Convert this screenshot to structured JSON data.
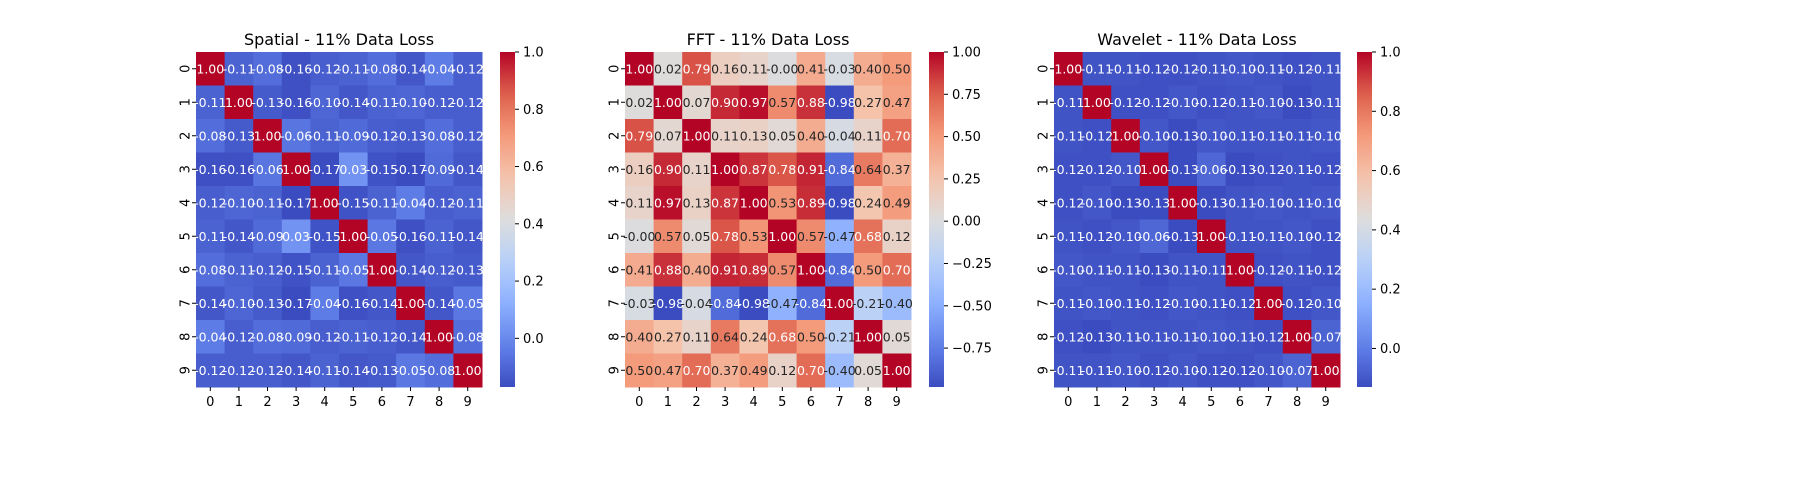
{
  "chart_data": [
    {
      "type": "heatmap",
      "title": "Spatial - 11% Data Loss",
      "x_tick_labels": [
        "0",
        "1",
        "2",
        "3",
        "4",
        "5",
        "6",
        "7",
        "8",
        "9"
      ],
      "y_tick_labels": [
        "0",
        "1",
        "2",
        "3",
        "4",
        "5",
        "6",
        "7",
        "8",
        "9"
      ],
      "colormap": "coolwarm",
      "vmin": -0.17,
      "vmax": 1.0,
      "colorbar_ticks": [
        0.0,
        0.2,
        0.4,
        0.6,
        0.8,
        1.0
      ],
      "colorbar_tick_labels": [
        "0.0",
        "0.2",
        "0.4",
        "0.6",
        "0.8",
        "1.0"
      ],
      "values": [
        [
          1.0,
          -0.11,
          -0.08,
          -0.16,
          -0.12,
          -0.11,
          -0.08,
          -0.14,
          -0.04,
          -0.12
        ],
        [
          -0.11,
          1.0,
          -0.13,
          -0.16,
          -0.1,
          -0.14,
          -0.11,
          -0.1,
          -0.12,
          -0.12
        ],
        [
          -0.08,
          -0.13,
          1.0,
          -0.06,
          -0.11,
          -0.09,
          -0.12,
          -0.13,
          -0.08,
          -0.12
        ],
        [
          -0.16,
          -0.16,
          -0.06,
          1.0,
          -0.17,
          0.03,
          -0.15,
          -0.17,
          -0.09,
          -0.14
        ],
        [
          -0.12,
          -0.1,
          -0.11,
          -0.17,
          1.0,
          -0.15,
          -0.11,
          -0.04,
          -0.12,
          -0.11
        ],
        [
          -0.11,
          -0.14,
          -0.09,
          0.03,
          -0.15,
          1.0,
          -0.05,
          -0.16,
          -0.11,
          -0.14
        ],
        [
          -0.08,
          -0.11,
          -0.12,
          -0.15,
          -0.11,
          -0.05,
          1.0,
          -0.14,
          -0.12,
          -0.13
        ],
        [
          -0.14,
          -0.1,
          -0.13,
          -0.17,
          -0.04,
          -0.16,
          -0.14,
          1.0,
          -0.14,
          -0.05
        ],
        [
          -0.04,
          -0.12,
          -0.08,
          -0.09,
          -0.12,
          -0.11,
          -0.12,
          -0.14,
          1.0,
          -0.08
        ],
        [
          -0.12,
          -0.12,
          -0.12,
          -0.14,
          -0.11,
          -0.14,
          -0.13,
          -0.05,
          -0.08,
          1.0
        ]
      ]
    },
    {
      "type": "heatmap",
      "title": "FFT - 11% Data Loss",
      "x_tick_labels": [
        "0",
        "1",
        "2",
        "3",
        "4",
        "5",
        "6",
        "7",
        "8",
        "9"
      ],
      "y_tick_labels": [
        "0",
        "1",
        "2",
        "3",
        "4",
        "5",
        "6",
        "7",
        "8",
        "9"
      ],
      "colormap": "coolwarm",
      "vmin": -0.98,
      "vmax": 1.0,
      "colorbar_ticks": [
        -0.75,
        -0.5,
        -0.25,
        0.0,
        0.25,
        0.5,
        0.75,
        1.0
      ],
      "colorbar_tick_labels": [
        "−0.75",
        "−0.50",
        "−0.25",
        "0.00",
        "0.25",
        "0.50",
        "0.75",
        "1.00"
      ],
      "values": [
        [
          1.0,
          0.02,
          0.79,
          0.16,
          0.11,
          -0.0,
          0.41,
          -0.03,
          0.4,
          0.5
        ],
        [
          0.02,
          1.0,
          0.07,
          0.9,
          0.97,
          0.57,
          0.88,
          -0.98,
          0.27,
          0.47
        ],
        [
          0.79,
          0.07,
          1.0,
          0.11,
          0.13,
          0.05,
          0.4,
          -0.04,
          0.11,
          0.7
        ],
        [
          0.16,
          0.9,
          0.11,
          1.0,
          0.87,
          0.78,
          0.91,
          -0.84,
          0.64,
          0.37
        ],
        [
          0.11,
          0.97,
          0.13,
          0.87,
          1.0,
          0.53,
          0.89,
          -0.98,
          0.24,
          0.49
        ],
        [
          -0.0,
          0.57,
          0.05,
          0.78,
          0.53,
          1.0,
          0.57,
          -0.47,
          0.68,
          0.12
        ],
        [
          0.41,
          0.88,
          0.4,
          0.91,
          0.89,
          0.57,
          1.0,
          -0.84,
          0.5,
          0.7
        ],
        [
          -0.03,
          -0.98,
          -0.04,
          -0.84,
          -0.98,
          -0.47,
          -0.84,
          1.0,
          -0.21,
          -0.4
        ],
        [
          0.4,
          0.27,
          0.11,
          0.64,
          0.24,
          0.68,
          0.5,
          -0.21,
          1.0,
          0.05
        ],
        [
          0.5,
          0.47,
          0.7,
          0.37,
          0.49,
          0.12,
          0.7,
          -0.4,
          0.05,
          1.0
        ]
      ]
    },
    {
      "type": "heatmap",
      "title": "Wavelet - 11% Data Loss",
      "x_tick_labels": [
        "0",
        "1",
        "2",
        "3",
        "4",
        "5",
        "6",
        "7",
        "8",
        "9"
      ],
      "y_tick_labels": [
        "0",
        "1",
        "2",
        "3",
        "4",
        "5",
        "6",
        "7",
        "8",
        "9"
      ],
      "colormap": "coolwarm",
      "vmin": -0.13,
      "vmax": 1.0,
      "colorbar_ticks": [
        0.0,
        0.2,
        0.4,
        0.6,
        0.8,
        1.0
      ],
      "colorbar_tick_labels": [
        "0.0",
        "0.2",
        "0.4",
        "0.6",
        "0.8",
        "1.0"
      ],
      "values": [
        [
          1.0,
          -0.11,
          -0.11,
          -0.12,
          -0.12,
          -0.11,
          -0.1,
          -0.11,
          -0.12,
          -0.11
        ],
        [
          -0.11,
          1.0,
          -0.12,
          -0.12,
          -0.1,
          -0.12,
          -0.11,
          -0.1,
          -0.13,
          -0.11
        ],
        [
          -0.11,
          -0.12,
          1.0,
          -0.1,
          -0.13,
          -0.1,
          -0.11,
          -0.11,
          -0.11,
          -0.1
        ],
        [
          -0.12,
          -0.12,
          -0.1,
          1.0,
          -0.13,
          -0.06,
          -0.13,
          -0.12,
          -0.11,
          -0.12
        ],
        [
          -0.12,
          -0.1,
          -0.13,
          -0.13,
          1.0,
          -0.13,
          -0.11,
          -0.1,
          -0.11,
          -0.1
        ],
        [
          -0.11,
          -0.12,
          -0.1,
          -0.06,
          -0.13,
          1.0,
          -0.11,
          -0.11,
          -0.1,
          -0.12
        ],
        [
          -0.1,
          -0.11,
          -0.11,
          -0.13,
          -0.11,
          -0.11,
          1.0,
          -0.12,
          -0.11,
          -0.12
        ],
        [
          -0.11,
          -0.1,
          -0.11,
          -0.12,
          -0.1,
          -0.11,
          -0.12,
          1.0,
          -0.12,
          -0.1
        ],
        [
          -0.12,
          -0.13,
          -0.11,
          -0.11,
          -0.11,
          -0.1,
          -0.11,
          -0.12,
          1.0,
          -0.07
        ],
        [
          -0.11,
          -0.11,
          -0.1,
          -0.12,
          -0.1,
          -0.12,
          -0.12,
          -0.1,
          -0.07,
          1.0
        ]
      ]
    }
  ]
}
